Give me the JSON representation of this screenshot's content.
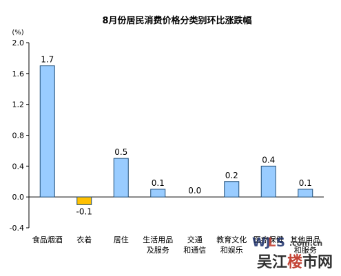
{
  "chart_data": {
    "type": "bar",
    "title": "8月份居民消费价格分类别环比涨跌幅",
    "unit_label": "(%)",
    "categories": [
      [
        "食品烟酒"
      ],
      [
        "衣着"
      ],
      [
        "居住"
      ],
      [
        "生活用品",
        "及服务"
      ],
      [
        "交通",
        "和通信"
      ],
      [
        "教育文化",
        "和娱乐"
      ],
      [
        "医疗保健"
      ],
      [
        "其他用品",
        "和服务"
      ]
    ],
    "values": [
      1.7,
      -0.1,
      0.5,
      0.1,
      0.0,
      0.2,
      0.4,
      0.1
    ],
    "data_labels": [
      "1.7",
      "-0.1",
      "0.5",
      "0.1",
      "0.0",
      "0.2",
      "0.4",
      "0.1"
    ],
    "ylim": [
      -0.4,
      2.0
    ],
    "yticks": [
      "-0.4",
      "0.0",
      "0.4",
      "0.8",
      "1.2",
      "1.6",
      "2.0"
    ],
    "ytick_values": [
      -0.4,
      0.0,
      0.4,
      0.8,
      1.2,
      1.6,
      2.0
    ],
    "grid": false,
    "legend": "none",
    "colors": {
      "positive": "#99ccff",
      "negative": "#ffc000",
      "bar_stroke": "#1f4e79",
      "axis": "#000000"
    }
  },
  "watermark": {
    "site_domain": "WJLS.com.cn",
    "site_name": "吴江楼市网"
  }
}
